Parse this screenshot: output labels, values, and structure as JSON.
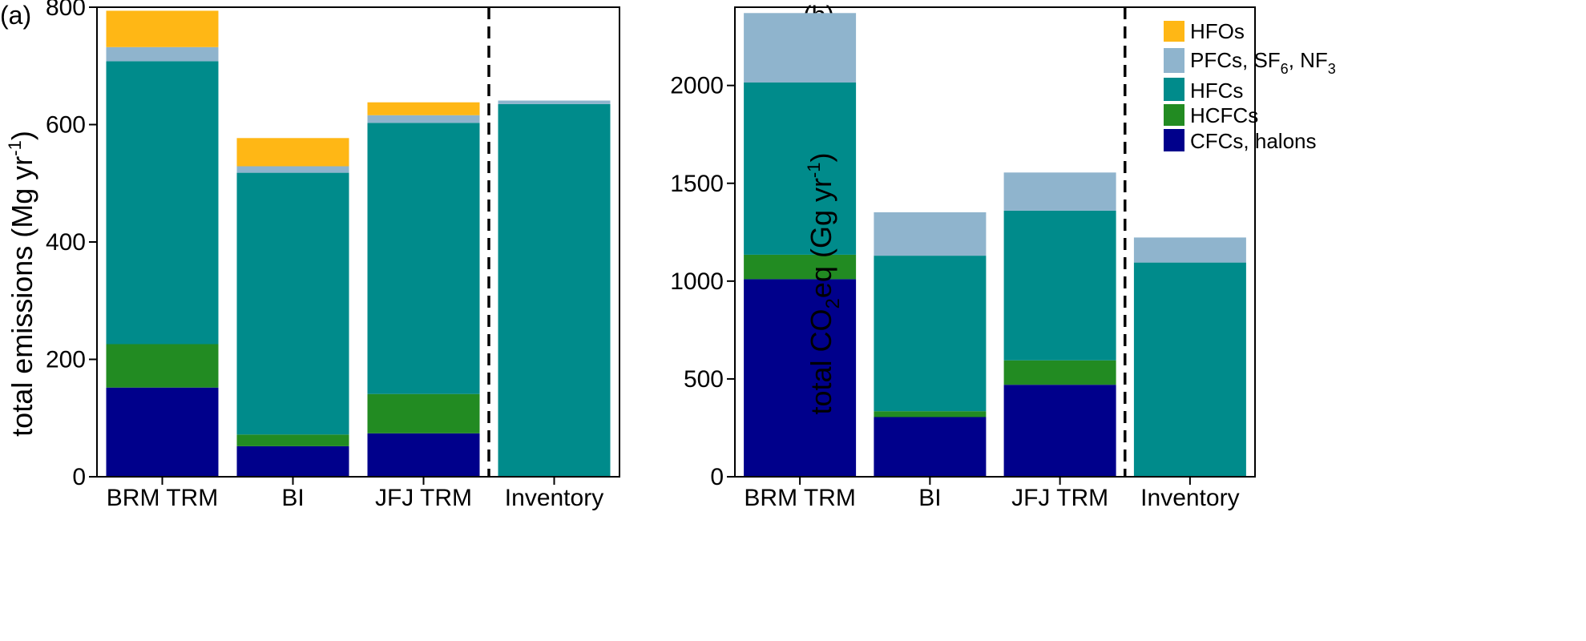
{
  "chart_data": [
    {
      "panel_label": "(a)",
      "type": "bar",
      "stacked": true,
      "ylabel": "total emissions (Mg yr",
      "ylabel_sup": "-1",
      "ylabel_tail": ")",
      "ylim": [
        0,
        800
      ],
      "yticks": [
        "0",
        "200",
        "400",
        "600",
        "800"
      ],
      "categories": [
        "BRM TRM",
        "BI",
        "JFJ TRM",
        "Inventory"
      ],
      "divider_after_category": 3,
      "series": [
        {
          "name": "CFCs, halons",
          "color": "#00008b",
          "values": [
            152,
            52,
            74,
            0
          ]
        },
        {
          "name": "HCFCs",
          "color": "#228b22",
          "values": [
            74,
            20,
            67,
            0
          ]
        },
        {
          "name": "HFCs",
          "color": "#008b8b",
          "values": [
            482,
            446,
            462,
            635
          ]
        },
        {
          "name": "PFCs, SF6, NF3",
          "color": "#8fb4cd",
          "values": [
            24,
            11,
            13,
            6
          ]
        },
        {
          "name": "HFOs",
          "color": "#ffb715",
          "values": [
            62,
            48,
            22,
            0
          ]
        }
      ]
    },
    {
      "panel_label": "(b)",
      "type": "bar",
      "stacked": true,
      "ylabel": "total CO",
      "ylabel_sub": "2",
      "ylabel_tail": "eq (Gg yr",
      "ylabel_sup": "-1",
      "ylabel_end": ")",
      "ylim": [
        0,
        2400
      ],
      "yticks": [
        "0",
        "500",
        "1000",
        "1500",
        "2000"
      ],
      "categories": [
        "BRM TRM",
        "BI",
        "JFJ TRM",
        "Inventory"
      ],
      "divider_after_category": 3,
      "series": [
        {
          "name": "CFCs, halons",
          "color": "#00008b",
          "values": [
            1010,
            305,
            470,
            0
          ]
        },
        {
          "name": "HCFCs",
          "color": "#228b22",
          "values": [
            125,
            30,
            125,
            0
          ]
        },
        {
          "name": "HFCs",
          "color": "#008b8b",
          "values": [
            880,
            795,
            765,
            1095
          ]
        },
        {
          "name": "PFCs, SF6, NF3",
          "color": "#8fb4cd",
          "values": [
            355,
            222,
            195,
            128
          ]
        },
        {
          "name": "HFOs",
          "color": "#ffb715",
          "values": [
            0,
            0,
            0,
            0
          ]
        }
      ]
    }
  ],
  "legend": {
    "placement": "top-right of panel (b)",
    "items": [
      {
        "label": "HFOs",
        "color": "#ffb715"
      },
      {
        "label": "PFCs, SF",
        "sub1": "6",
        "mid": ", NF",
        "sub2": "3",
        "color": "#8fb4cd"
      },
      {
        "label": "HFCs",
        "color": "#008b8b"
      },
      {
        "label": "HCFCs",
        "color": "#228b22"
      },
      {
        "label": "CFCs, halons",
        "color": "#00008b"
      }
    ]
  }
}
